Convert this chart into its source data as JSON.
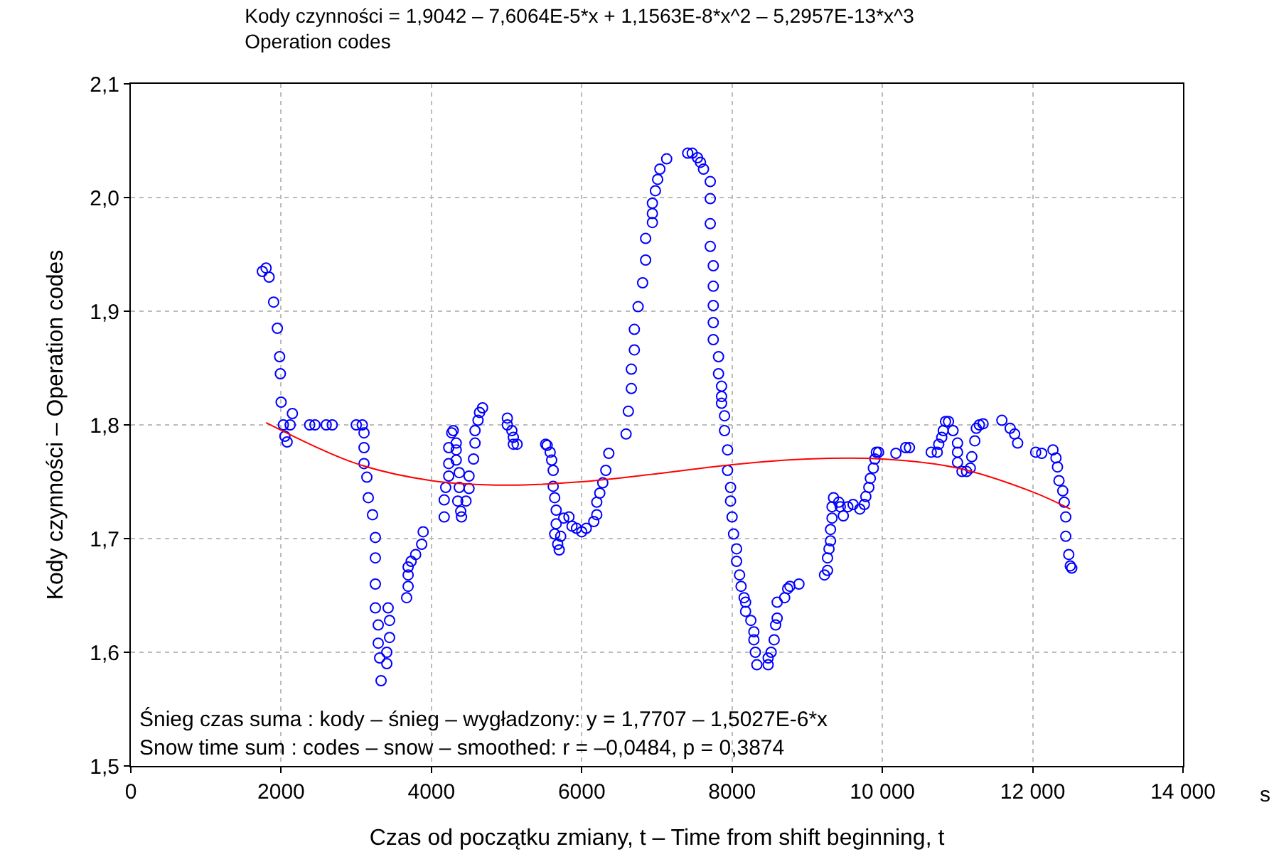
{
  "chart_data": {
    "type": "scatter",
    "title": "Kody czynności = 1,9042 – 7,6064E-5*x + 1,1563E-8*x^2 – 5,2957E-13*x^3",
    "subtitle": "Operation codes",
    "xlabel": "Czas od początku zmiany, t – Time from shift beginning, t",
    "ylabel": "Kody czynności – Operation codes",
    "annotations": [
      "Śnieg czas suma : kody – śnieg – wygładzony: y = 1,7707 – 1,5027E-6*x",
      "Snow time sum : codes – snow – smoothed: r = –0,0484, p = 0,3874",
      "s"
    ],
    "xlim": [
      0,
      14000
    ],
    "xticks": [
      0,
      2000,
      4000,
      6000,
      8000,
      {
        "value": 10000,
        "label": "10 000"
      },
      {
        "value": 12000,
        "label": "12 000"
      },
      {
        "value": 14000,
        "label": "14 000"
      }
    ],
    "ylim": [
      1.5,
      2.1
    ],
    "yticks": [
      {
        "value": 1.5,
        "label": "1,5"
      },
      {
        "value": 1.6,
        "label": "1,6"
      },
      {
        "value": 1.7,
        "label": "1,7"
      },
      {
        "value": 1.8,
        "label": "1,8"
      },
      {
        "value": 1.9,
        "label": "1,9"
      },
      {
        "value": 2.0,
        "label": "2,0"
      },
      {
        "value": 2.1,
        "label": "2,1"
      }
    ],
    "grid": true,
    "marker": "circle",
    "series": [
      {
        "color": "#0000ff",
        "x": [
          1750,
          1800,
          1840,
          1900,
          1950,
          1980,
          1990,
          2000,
          2030,
          2050,
          2080,
          2120,
          2150,
          2380,
          2450,
          2600,
          2680,
          3000,
          3080,
          3103,
          3103,
          3103,
          3141,
          3160,
          3216,
          3254,
          3254,
          3254,
          3254,
          3292,
          3292,
          3311,
          3330,
          3424,
          3443,
          3443,
          3406,
          3406,
          3670,
          3690,
          3690,
          3690,
          3730,
          3790,
          3870,
          3890,
          4170,
          4170,
          4190,
          4230,
          4230,
          4230,
          4270,
          4290,
          4330,
          4330,
          4330,
          4370,
          4370,
          4350,
          4390,
          4400,
          4460,
          4500,
          4500,
          4560,
          4580,
          4580,
          4620,
          4640,
          4680,
          5010,
          5010,
          5070,
          5090,
          5090,
          5140,
          5520,
          5540,
          5580,
          5600,
          5620,
          5620,
          5640,
          5660,
          5660,
          5640,
          5680,
          5700,
          5720,
          5760,
          5830,
          5870,
          5930,
          6000,
          6060,
          6160,
          6200,
          6200,
          6240,
          6280,
          6320,
          6360,
          6590,
          6620,
          6660,
          6660,
          6700,
          6700,
          6750,
          6810,
          6850,
          6850,
          6940,
          6940,
          6940,
          6980,
          7010,
          7040,
          7130,
          7410,
          7470,
          7540,
          7580,
          7620,
          7710,
          7710,
          7710,
          7710,
          7750,
          7750,
          7750,
          7750,
          7750,
          7820,
          7820,
          7860,
          7860,
          7860,
          7900,
          7900,
          7940,
          7940,
          7980,
          7980,
          8000,
          8020,
          8060,
          8060,
          8100,
          8120,
          8160,
          8180,
          8180,
          8250,
          8290,
          8290,
          8310,
          8330,
          8480,
          8480,
          8520,
          8560,
          8580,
          8600,
          8600,
          8700,
          8740,
          8770,
          8890,
          9230,
          9270,
          9270,
          9290,
          9310,
          9310,
          9330,
          9330,
          9350,
          9420,
          9440,
          9480,
          9540,
          9610,
          9700,
          9760,
          9780,
          9820,
          9840,
          9880,
          9900,
          9920,
          9950,
          10180,
          10310,
          10360,
          10650,
          10730,
          10750,
          10790,
          10810,
          10840,
          10880,
          10940,
          11000,
          11000,
          11000,
          11060,
          11120,
          11170,
          11190,
          11230,
          11250,
          11290,
          11340,
          11590,
          11700,
          11760,
          11800,
          12040,
          12120,
          12270,
          12310,
          12330,
          12350,
          12400,
          12420,
          12440,
          12440,
          12480,
          12500,
          12520
        ],
        "values": [
          1.935,
          1.938,
          1.93,
          1.908,
          1.885,
          1.86,
          1.845,
          1.82,
          1.8,
          1.79,
          1.785,
          1.8,
          1.81,
          1.8,
          1.8,
          1.8,
          1.8,
          1.8,
          1.8,
          1.793,
          1.78,
          1.766,
          1.754,
          1.736,
          1.721,
          1.701,
          1.683,
          1.66,
          1.639,
          1.624,
          1.608,
          1.595,
          1.575,
          1.639,
          1.628,
          1.613,
          1.6,
          1.59,
          1.648,
          1.658,
          1.668,
          1.675,
          1.68,
          1.686,
          1.695,
          1.706,
          1.719,
          1.734,
          1.745,
          1.755,
          1.766,
          1.78,
          1.793,
          1.795,
          1.784,
          1.778,
          1.769,
          1.758,
          1.745,
          1.733,
          1.724,
          1.719,
          1.733,
          1.744,
          1.755,
          1.77,
          1.784,
          1.795,
          1.804,
          1.811,
          1.815,
          1.806,
          1.8,
          1.795,
          1.789,
          1.783,
          1.783,
          1.783,
          1.782,
          1.776,
          1.769,
          1.76,
          1.746,
          1.736,
          1.725,
          1.713,
          1.704,
          1.695,
          1.69,
          1.702,
          1.718,
          1.719,
          1.711,
          1.709,
          1.706,
          1.709,
          1.715,
          1.721,
          1.732,
          1.74,
          1.749,
          1.76,
          1.775,
          1.792,
          1.812,
          1.832,
          1.849,
          1.866,
          1.884,
          1.904,
          1.925,
          1.945,
          1.964,
          1.978,
          1.986,
          1.995,
          2.006,
          2.016,
          2.025,
          2.034,
          2.039,
          2.039,
          2.035,
          2.031,
          2.025,
          2.014,
          1.999,
          1.977,
          1.957,
          1.94,
          1.922,
          1.905,
          1.89,
          1.875,
          1.86,
          1.845,
          1.834,
          1.825,
          1.819,
          1.808,
          1.795,
          1.778,
          1.76,
          1.745,
          1.733,
          1.719,
          1.704,
          1.691,
          1.68,
          1.668,
          1.658,
          1.648,
          1.644,
          1.636,
          1.628,
          1.618,
          1.611,
          1.6,
          1.589,
          1.589,
          1.595,
          1.6,
          1.611,
          1.624,
          1.63,
          1.644,
          1.648,
          1.656,
          1.658,
          1.66,
          1.668,
          1.672,
          1.683,
          1.691,
          1.698,
          1.708,
          1.718,
          1.728,
          1.736,
          1.732,
          1.728,
          1.72,
          1.728,
          1.73,
          1.726,
          1.73,
          1.737,
          1.745,
          1.753,
          1.762,
          1.77,
          1.776,
          1.776,
          1.775,
          1.78,
          1.78,
          1.776,
          1.776,
          1.783,
          1.789,
          1.795,
          1.803,
          1.803,
          1.795,
          1.784,
          1.776,
          1.767,
          1.759,
          1.759,
          1.762,
          1.772,
          1.786,
          1.797,
          1.8,
          1.801,
          1.804,
          1.797,
          1.792,
          1.784,
          1.776,
          1.775,
          1.778,
          1.771,
          1.763,
          1.751,
          1.742,
          1.732,
          1.719,
          1.702,
          1.686,
          1.676,
          1.674
        ]
      },
      {
        "type": "line",
        "color": "#ff0000",
        "marker": "none",
        "x": [
          1800,
          3000,
          4000,
          5000,
          6000,
          7000,
          8000,
          9000,
          10000,
          11000,
          12000,
          12500
        ],
        "values": [
          1.802,
          1.766,
          1.751,
          1.747,
          1.75,
          1.757,
          1.765,
          1.77,
          1.77,
          1.762,
          1.741,
          1.726
        ]
      }
    ]
  }
}
